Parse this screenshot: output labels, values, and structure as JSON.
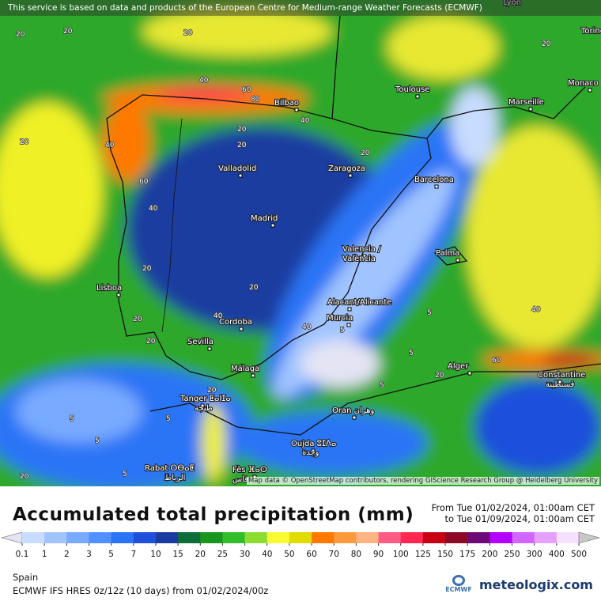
{
  "banner": "This service is based on data and products of the European Centre for Medium-range Weather Forecasts (ECMWF)",
  "map": {
    "cities": [
      "Lyon",
      "Torino",
      "Monaco",
      "Marseille",
      "Toulouse",
      "Bilbao",
      "Valladolid",
      "Zaragoza",
      "Barcelona",
      "Madrid",
      "Palma",
      "Valencia /",
      "València",
      "Lisboa",
      "Alacant/Alicante",
      "Murcia",
      "Cordoba",
      "Sevilla",
      "Málaga",
      "Alger",
      "Constantine",
      "قسنطينة",
      "Tanger ⵟⴰⵏⵊⴰ",
      "طنجة",
      "Oran وهران",
      "Oujda ⵓⵊⴷⴰ",
      "وجدة",
      "Rabat ⵔⴱⴰⵟ",
      "الرباط",
      "Fès ⴼⴰⵙ",
      "فاس"
    ],
    "contour_labels": [
      "20",
      "20",
      "20",
      "20",
      "40",
      "60",
      "80",
      "40",
      "40",
      "60",
      "20",
      "20",
      "20",
      "40",
      "20",
      "20",
      "40",
      "20",
      "20",
      "5",
      "5",
      "5",
      "5",
      "5",
      "5",
      "40",
      "60",
      "20",
      "20",
      "5",
      "5",
      "20",
      "40",
      "20"
    ],
    "attribution": "Map data © OpenStreetMap contributors, rendering GIScience Research Group @ Heidelberg University"
  },
  "legend": {
    "title": "Accumulated total precipitation (mm)",
    "from": "From Tue 01/02/2024, 01:00am CET",
    "to": "to Tue 01/09/2024, 01:00am CET",
    "scale": [
      0.1,
      1,
      2,
      3,
      5,
      7,
      10,
      15,
      20,
      25,
      30,
      40,
      50,
      60,
      70,
      80,
      90,
      100,
      125,
      150,
      175,
      200,
      250,
      300,
      400,
      500
    ],
    "colors": [
      "#e4e4f4",
      "#c8dcff",
      "#a0c4ff",
      "#78aaff",
      "#5090ff",
      "#2c74f6",
      "#1e50dc",
      "#1a3ca0",
      "#0e6e3a",
      "#1a961e",
      "#32be28",
      "#8cdc32",
      "#fafa32",
      "#e1dc00",
      "#ff7800",
      "#ff9a3c",
      "#ffb482",
      "#ff5a82",
      "#ff2850",
      "#c80014",
      "#8c0a28",
      "#6e0a78",
      "#b400ff",
      "#d264ff",
      "#e6a0ff",
      "#f5e0ff",
      "#c8c8c8"
    ]
  },
  "footer": {
    "region": "Spain",
    "model": "ECMWF IFS HRES 0z/12z (10 days) from 01/02/2024/00z",
    "ecmwf_logo": "ECMWF",
    "brand": "meteologix.com"
  }
}
